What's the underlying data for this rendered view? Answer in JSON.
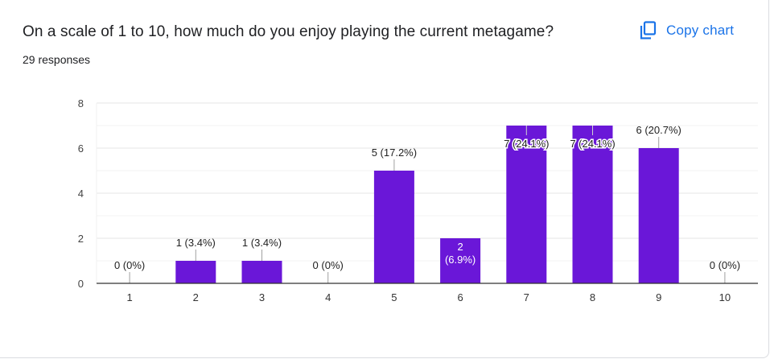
{
  "header": {
    "question": "On a scale of 1 to 10, how much do you enjoy playing the current metagame?",
    "responses": "29 responses",
    "copy_label": "Copy chart",
    "copy_icon": "copy-icon"
  },
  "colors": {
    "bar": "#6a17d8",
    "accent": "#1a73e8",
    "grid": "#e8e8e8",
    "axis": "#333333",
    "text": "#202124"
  },
  "chart_data": {
    "type": "bar",
    "categories": [
      "1",
      "2",
      "3",
      "4",
      "5",
      "6",
      "7",
      "8",
      "9",
      "10"
    ],
    "values": [
      0,
      1,
      1,
      0,
      5,
      2,
      7,
      7,
      6,
      0
    ],
    "data_labels": [
      "0 (0%)",
      "1 (3.4%)",
      "1 (3.4%)",
      "0 (0%)",
      "5 (17.2%)",
      "2 (6.9%)",
      "7 (24.1%)",
      "7 (24.1%)",
      "6 (20.7%)",
      "0 (0%)"
    ],
    "title": "",
    "xlabel": "",
    "ylabel": "",
    "ylim": [
      0,
      8
    ],
    "yticks": [
      0,
      2,
      4,
      6,
      8
    ],
    "grid": true,
    "legend": "none"
  }
}
